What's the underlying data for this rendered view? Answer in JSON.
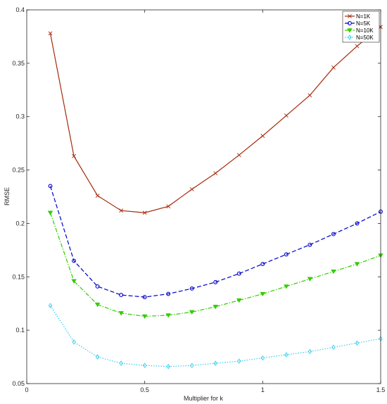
{
  "chart_data": {
    "type": "line",
    "title": "",
    "xlabel": "Multiplier for k",
    "ylabel": "RMSE",
    "xlim": [
      0,
      1.5
    ],
    "ylim": [
      0.05,
      0.4
    ],
    "xticks": [
      0,
      0.5,
      1,
      1.5
    ],
    "xtick_labels": [
      "0",
      "0.5",
      "1",
      "1.5"
    ],
    "yticks": [
      0.05,
      0.1,
      0.15,
      0.2,
      0.25,
      0.3,
      0.35,
      0.4
    ],
    "ytick_labels": [
      "0.05",
      "0.1",
      "0.15",
      "0.2",
      "0.25",
      "0.3",
      "0.35",
      "0.4"
    ],
    "grid": false,
    "legend_position": "top-right",
    "x": [
      0.1,
      0.2,
      0.3,
      0.4,
      0.5,
      0.6,
      0.7,
      0.8,
      0.9,
      1.0,
      1.1,
      1.2,
      1.3,
      1.4,
      1.5
    ],
    "series": [
      {
        "name": "N=1K",
        "color": "#a52a0a",
        "dash": "solid",
        "marker": "x",
        "values": [
          0.378,
          0.263,
          0.226,
          0.212,
          0.21,
          0.216,
          0.232,
          0.247,
          0.264,
          0.282,
          0.301,
          0.32,
          0.346,
          0.366,
          0.384
        ]
      },
      {
        "name": "N=5K",
        "color": "#0000cc",
        "dash": "dashed",
        "marker": "circle",
        "values": [
          0.235,
          0.165,
          0.141,
          0.133,
          0.131,
          0.134,
          0.139,
          0.145,
          0.153,
          0.162,
          0.171,
          0.18,
          0.19,
          0.2,
          0.211
        ]
      },
      {
        "name": "N=10K",
        "color": "#33cc00",
        "dash": "dashdot",
        "marker": "triangle-down",
        "values": [
          0.21,
          0.146,
          0.124,
          0.116,
          0.113,
          0.114,
          0.117,
          0.122,
          0.128,
          0.134,
          0.141,
          0.148,
          0.155,
          0.162,
          0.17
        ]
      },
      {
        "name": "N=50K",
        "color": "#33ccee",
        "dash": "dotted",
        "marker": "diamond",
        "values": [
          0.123,
          0.089,
          0.075,
          0.069,
          0.067,
          0.066,
          0.067,
          0.069,
          0.071,
          0.074,
          0.077,
          0.08,
          0.084,
          0.088,
          0.092
        ]
      }
    ]
  }
}
